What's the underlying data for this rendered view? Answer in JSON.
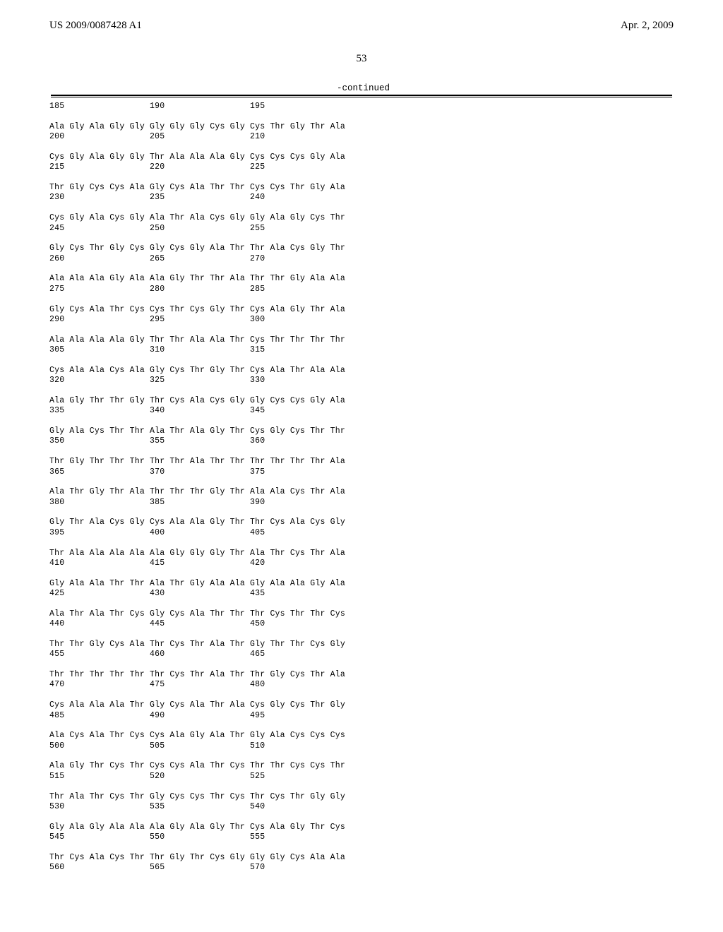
{
  "header": {
    "left": "US 2009/0087428 A1",
    "right": "Apr. 2, 2009"
  },
  "page_number": "53",
  "continued": "-continued",
  "sequence": "185                 190                 195\n\nAla Gly Ala Gly Gly Gly Gly Gly Cys Gly Cys Thr Gly Thr Ala\n200                 205                 210\n\nCys Gly Ala Gly Gly Thr Ala Ala Ala Gly Cys Cys Cys Gly Ala\n215                 220                 225\n\nThr Gly Cys Cys Ala Gly Cys Ala Thr Thr Cys Cys Thr Gly Ala\n230                 235                 240\n\nCys Gly Ala Cys Gly Ala Thr Ala Cys Gly Gly Ala Gly Cys Thr\n245                 250                 255\n\nGly Cys Thr Gly Cys Gly Cys Gly Ala Thr Thr Ala Cys Gly Thr\n260                 265                 270\n\nAla Ala Ala Gly Ala Ala Gly Thr Thr Ala Thr Thr Gly Ala Ala\n275                 280                 285\n\nGly Cys Ala Thr Cys Cys Thr Cys Gly Thr Cys Ala Gly Thr Ala\n290                 295                 300\n\nAla Ala Ala Ala Gly Thr Thr Ala Ala Thr Cys Thr Thr Thr Thr\n305                 310                 315\n\nCys Ala Ala Cys Ala Gly Cys Thr Gly Thr Cys Ala Thr Ala Ala\n320                 325                 330\n\nAla Gly Thr Thr Gly Thr Cys Ala Cys Gly Gly Cys Cys Gly Ala\n335                 340                 345\n\nGly Ala Cys Thr Thr Ala Thr Ala Gly Thr Cys Gly Cys Thr Thr\n350                 355                 360\n\nThr Gly Thr Thr Thr Thr Thr Ala Thr Thr Thr Thr Thr Thr Ala\n365                 370                 375\n\nAla Thr Gly Thr Ala Thr Thr Thr Gly Thr Ala Ala Cys Thr Ala\n380                 385                 390\n\nGly Thr Ala Cys Gly Cys Ala Ala Gly Thr Thr Cys Ala Cys Gly\n395                 400                 405\n\nThr Ala Ala Ala Ala Ala Gly Gly Gly Thr Ala Thr Cys Thr Ala\n410                 415                 420\n\nGly Ala Ala Thr Thr Ala Thr Gly Ala Ala Gly Ala Ala Gly Ala\n425                 430                 435\n\nAla Thr Ala Thr Cys Gly Cys Ala Thr Thr Thr Cys Thr Thr Cys\n440                 445                 450\n\nThr Thr Gly Cys Ala Thr Cys Thr Ala Thr Gly Thr Thr Cys Gly\n455                 460                 465\n\nThr Thr Thr Thr Thr Thr Cys Thr Ala Thr Thr Gly Cys Thr Ala\n470                 475                 480\n\nCys Ala Ala Ala Thr Gly Cys Ala Thr Ala Cys Gly Cys Thr Gly\n485                 490                 495\n\nAla Cys Ala Thr Cys Cys Ala Gly Ala Thr Gly Ala Cys Cys Cys\n500                 505                 510\n\nAla Gly Thr Cys Thr Cys Cys Ala Thr Cys Thr Thr Cys Cys Thr\n515                 520                 525\n\nThr Ala Thr Cys Thr Gly Cys Cys Thr Cys Thr Cys Thr Gly Gly\n530                 535                 540\n\nGly Ala Gly Ala Ala Ala Gly Ala Gly Thr Cys Ala Gly Thr Cys\n545                 550                 555\n\nThr Cys Ala Cys Thr Thr Gly Thr Cys Gly Gly Gly Cys Ala Ala\n560                 565                 570"
}
